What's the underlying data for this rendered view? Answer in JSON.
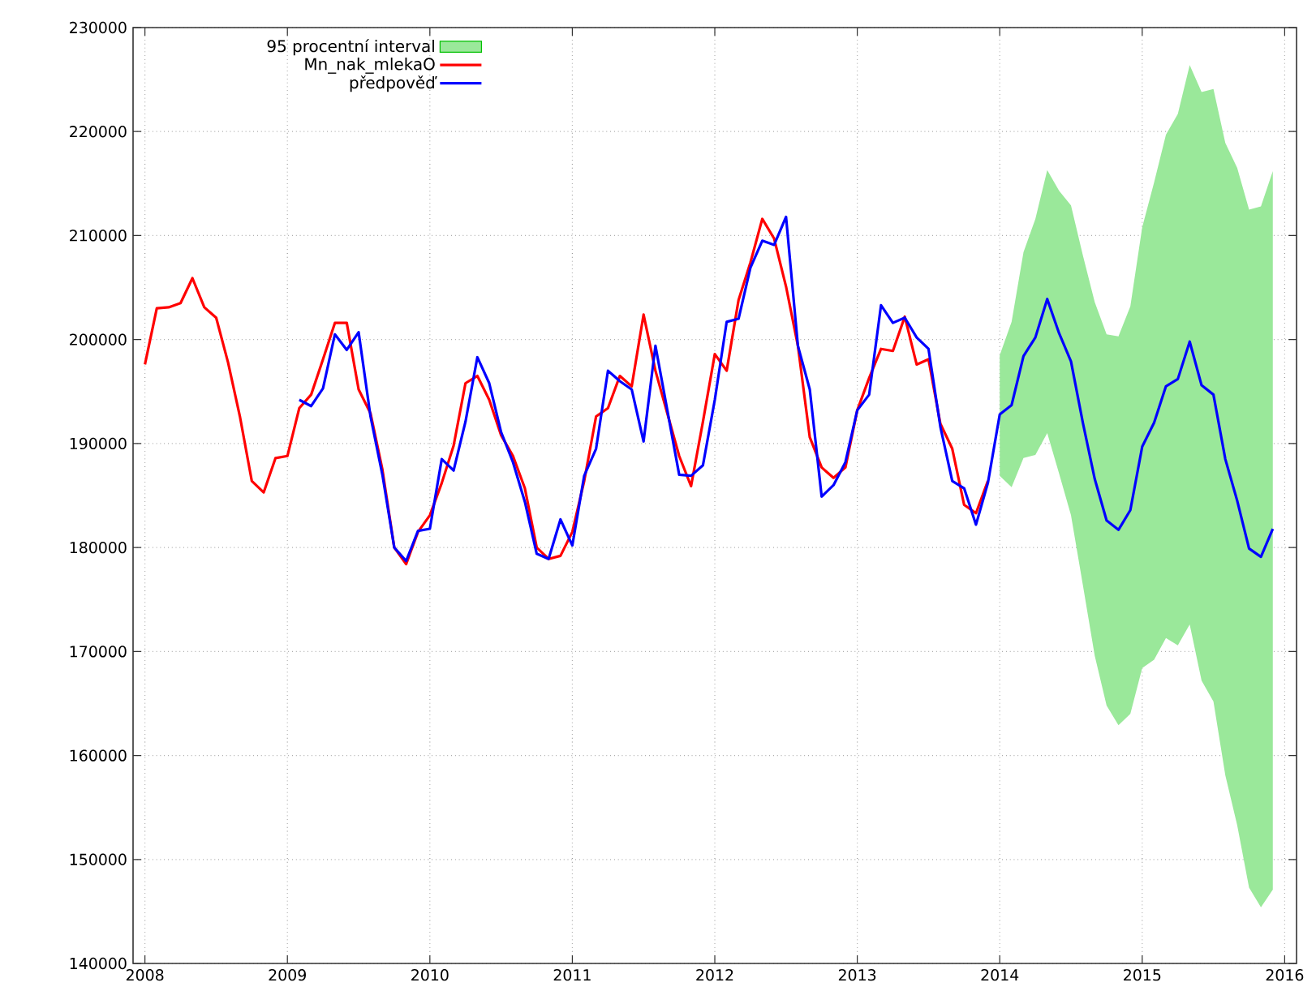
{
  "chart_data": {
    "type": "line",
    "xlim": [
      "2007-12",
      "2016-02"
    ],
    "ylim": [
      140000,
      230000
    ],
    "xticks": [
      "2008",
      "2009",
      "2010",
      "2011",
      "2012",
      "2013",
      "2014",
      "2015",
      "2016"
    ],
    "yticks": [
      140000,
      150000,
      160000,
      170000,
      180000,
      190000,
      200000,
      210000,
      220000,
      230000
    ],
    "grid": true,
    "legend": "top left",
    "series": [
      {
        "name": "95 procentní interval",
        "type": "area",
        "color": "#9ae89a",
        "x": [
          "2014-01",
          "2014-02",
          "2014-03",
          "2014-04",
          "2014-05",
          "2014-06",
          "2014-07",
          "2014-08",
          "2014-09",
          "2014-10",
          "2014-11",
          "2014-12",
          "2015-01",
          "2015-02",
          "2015-03",
          "2015-04",
          "2015-05",
          "2015-06",
          "2015-07",
          "2015-08",
          "2015-09",
          "2015-10",
          "2015-11",
          "2015-12"
        ],
        "values": [
          null,
          null,
          null,
          null,
          null,
          null,
          null,
          null,
          null,
          null,
          null,
          null,
          null,
          null,
          null,
          null,
          null,
          null,
          null,
          null,
          null,
          null,
          null,
          null
        ],
        "lower": [
          186900,
          185800,
          188600,
          188900,
          191000,
          187100,
          183100,
          176400,
          169600,
          164800,
          162900,
          164000,
          168400,
          169200,
          171300,
          170600,
          172600,
          167200,
          165200,
          158100,
          153300,
          147300,
          145400,
          147100
        ],
        "upper": [
          198500,
          201700,
          208400,
          211600,
          216300,
          214300,
          212900,
          208100,
          203600,
          200500,
          200300,
          203200,
          210800,
          215100,
          219700,
          221700,
          226400,
          223800,
          224100,
          218900,
          216500,
          212500,
          212800,
          216200
        ]
      },
      {
        "name": "Mn_nak_mlekaO",
        "color": "#ff0000",
        "x": [
          "2008-01",
          "2008-02",
          "2008-03",
          "2008-04",
          "2008-05",
          "2008-06",
          "2008-07",
          "2008-08",
          "2008-09",
          "2008-10",
          "2008-11",
          "2008-12",
          "2009-01",
          "2009-02",
          "2009-03",
          "2009-04",
          "2009-05",
          "2009-06",
          "2009-07",
          "2009-08",
          "2009-09",
          "2009-10",
          "2009-11",
          "2009-12",
          "2010-01",
          "2010-02",
          "2010-03",
          "2010-04",
          "2010-05",
          "2010-06",
          "2010-07",
          "2010-08",
          "2010-09",
          "2010-10",
          "2010-11",
          "2010-12",
          "2011-01",
          "2011-02",
          "2011-03",
          "2011-04",
          "2011-05",
          "2011-06",
          "2011-07",
          "2011-08",
          "2011-09",
          "2011-10",
          "2011-11",
          "2011-12",
          "2012-01",
          "2012-02",
          "2012-03",
          "2012-04",
          "2012-05",
          "2012-06",
          "2012-07",
          "2012-08",
          "2012-09",
          "2012-10",
          "2012-11",
          "2012-12",
          "2013-01",
          "2013-02",
          "2013-03",
          "2013-04",
          "2013-05",
          "2013-06",
          "2013-07",
          "2013-08",
          "2013-09",
          "2013-10",
          "2013-11",
          "2013-12"
        ],
        "values": [
          197600,
          203000,
          203100,
          203500,
          205900,
          203100,
          202100,
          197800,
          192600,
          186400,
          185300,
          188600,
          188800,
          193400,
          194700,
          198100,
          201600,
          201600,
          195200,
          192900,
          187500,
          180000,
          178400,
          181500,
          183100,
          186200,
          189800,
          195800,
          196500,
          194200,
          190800,
          188800,
          185700,
          180000,
          178900,
          179200,
          181500,
          186400,
          192600,
          193400,
          196500,
          195500,
          202400,
          197000,
          192900,
          188800,
          185900,
          192100,
          198600,
          197000,
          203800,
          207400,
          211600,
          209700,
          205100,
          199400,
          190600,
          187700,
          186700,
          187700,
          193200,
          196300,
          199100,
          198900,
          202200,
          197600,
          198100,
          191900,
          189500,
          184100,
          183300,
          186400
        ]
      },
      {
        "name": "předpověď",
        "color": "#0000ff",
        "x": [
          "2009-02",
          "2009-03",
          "2009-04",
          "2009-05",
          "2009-06",
          "2009-07",
          "2009-08",
          "2009-09",
          "2009-10",
          "2009-11",
          "2009-12",
          "2010-01",
          "2010-02",
          "2010-03",
          "2010-04",
          "2010-05",
          "2010-06",
          "2010-07",
          "2010-08",
          "2010-09",
          "2010-10",
          "2010-11",
          "2010-12",
          "2011-01",
          "2011-02",
          "2011-03",
          "2011-04",
          "2011-05",
          "2011-06",
          "2011-07",
          "2011-08",
          "2011-09",
          "2011-10",
          "2011-11",
          "2011-12",
          "2012-01",
          "2012-02",
          "2012-03",
          "2012-04",
          "2012-05",
          "2012-06",
          "2012-07",
          "2012-08",
          "2012-09",
          "2012-10",
          "2012-11",
          "2012-12",
          "2013-01",
          "2013-02",
          "2013-03",
          "2013-04",
          "2013-05",
          "2013-06",
          "2013-07",
          "2013-08",
          "2013-09",
          "2013-10",
          "2013-11",
          "2013-12",
          "2014-01",
          "2014-02",
          "2014-03",
          "2014-04",
          "2014-05",
          "2014-06",
          "2014-07",
          "2014-08",
          "2014-09",
          "2014-10",
          "2014-11",
          "2014-12",
          "2015-01",
          "2015-02",
          "2015-03",
          "2015-04",
          "2015-05",
          "2015-06",
          "2015-07",
          "2015-08",
          "2015-09",
          "2015-10",
          "2015-11",
          "2015-12"
        ],
        "values": [
          194200,
          193600,
          195300,
          200500,
          199000,
          200700,
          192600,
          187000,
          180000,
          178700,
          181600,
          181800,
          188500,
          187400,
          192100,
          198300,
          195800,
          191100,
          188200,
          184400,
          179400,
          178900,
          182700,
          180200,
          186900,
          189500,
          197000,
          196000,
          195200,
          190200,
          199400,
          193200,
          187000,
          186900,
          187900,
          194200,
          201700,
          202000,
          206900,
          209500,
          209100,
          211800,
          199400,
          195200,
          184900,
          186000,
          188200,
          193200,
          194700,
          203300,
          201600,
          202100,
          200200,
          199100,
          191600,
          186400,
          185700,
          182200,
          186200,
          192800,
          193700,
          198400,
          200200,
          203900,
          200600,
          197900,
          192000,
          186600,
          182600,
          181700,
          183600,
          189700,
          192000,
          195500,
          196200,
          199800,
          195600,
          194700,
          188500,
          184500,
          179900,
          179100,
          181800
        ]
      }
    ]
  }
}
